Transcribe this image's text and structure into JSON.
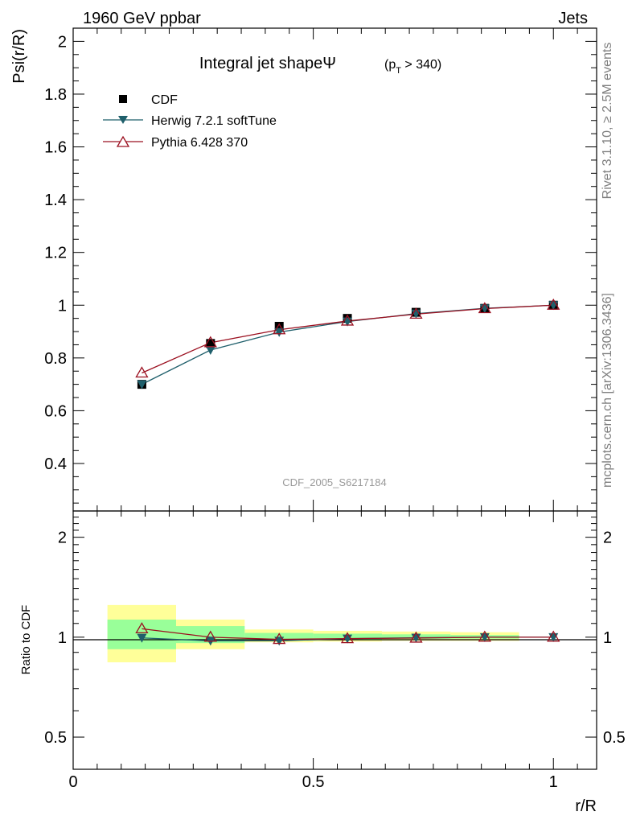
{
  "header": {
    "left": "1960 GeV ppbar",
    "right": "Jets"
  },
  "side_labels": {
    "rivet": "Rivet 3.1.10, ≥ 2.5M events",
    "mcplots": "mcplots.cern.ch [arXiv:1306.3436]"
  },
  "watermark": "CDF_2005_S6217184",
  "colors": {
    "cdf": "#000000",
    "herwig": "#1f5f6b",
    "pythia": "#9b1020",
    "band_inner": "#99ff99",
    "band_outer": "#ffff99"
  },
  "chart_data": [
    {
      "type": "line",
      "title": "Integral jet shapeΨ",
      "title_sub": {
        "open": "(p",
        "sub": "T",
        "close": " > 340)"
      },
      "ylabel": "Psi(r/R)",
      "xlim": [
        0,
        1.09
      ],
      "ylim": [
        0.22,
        2.05
      ],
      "yticks": [
        0.4,
        0.6,
        0.8,
        1,
        1.2,
        1.4,
        1.6,
        1.8,
        2
      ],
      "ytick_labels": [
        "0.4",
        "0.6",
        "0.8",
        "1",
        "1.2",
        "1.4",
        "1.6",
        "1.8",
        "2"
      ],
      "x": [
        0.143,
        0.286,
        0.429,
        0.571,
        0.714,
        0.857,
        1.0
      ],
      "series": [
        {
          "name": "CDF",
          "marker": "square",
          "values": [
            0.7,
            0.855,
            0.92,
            0.95,
            0.973,
            0.988,
            1.0
          ]
        },
        {
          "name": "Herwig 7.2.1 softTune",
          "marker": "triangle-down",
          "values": [
            0.7,
            0.83,
            0.898,
            0.938,
            0.968,
            0.988,
            1.0
          ]
        },
        {
          "name": "Pythia 6.428 370",
          "marker": "triangle-up-open",
          "values": [
            0.743,
            0.858,
            0.907,
            0.94,
            0.966,
            0.987,
            1.0
          ]
        }
      ]
    },
    {
      "type": "line",
      "ylabel": "Ratio to CDF",
      "xlabel": "r/R",
      "xlim": [
        0,
        1.09
      ],
      "ylim": [
        0.4,
        2.4
      ],
      "yscale": "log",
      "yticks": [
        0.5,
        1,
        2
      ],
      "ytick_labels": [
        "0.5",
        "1",
        "2"
      ],
      "xticks": [
        0,
        0.5,
        1
      ],
      "xtick_labels": [
        "0",
        "0.5",
        "1"
      ],
      "x": [
        0.143,
        0.286,
        0.429,
        0.571,
        0.714,
        0.857,
        1.0
      ],
      "bands": [
        {
          "x0": 0.0714,
          "x1": 0.2143,
          "outer": [
            0.84,
            1.25
          ],
          "inner": [
            0.92,
            1.13
          ]
        },
        {
          "x0": 0.2143,
          "x1": 0.3571,
          "outer": [
            0.92,
            1.13
          ],
          "inner": [
            0.96,
            1.08
          ]
        },
        {
          "x0": 0.3571,
          "x1": 0.5,
          "outer": [
            0.965,
            1.055
          ],
          "inner": [
            0.98,
            1.03
          ]
        },
        {
          "x0": 0.5,
          "x1": 0.6429,
          "outer": [
            0.97,
            1.045
          ],
          "inner": [
            0.985,
            1.025
          ]
        },
        {
          "x0": 0.6429,
          "x1": 0.7857,
          "outer": [
            0.975,
            1.04
          ],
          "inner": [
            0.988,
            1.02
          ]
        },
        {
          "x0": 0.7857,
          "x1": 0.9286,
          "outer": [
            0.975,
            1.035
          ],
          "inner": [
            0.99,
            1.015
          ]
        }
      ],
      "series": [
        {
          "name": "Herwig 7.2.1 softTune",
          "marker": "triangle-down",
          "values": [
            0.995,
            0.975,
            0.975,
            0.99,
            0.996,
            1.0,
            1.0
          ]
        },
        {
          "name": "Pythia 6.428 370",
          "marker": "triangle-up-open",
          "values": [
            1.06,
            1.0,
            0.985,
            0.99,
            0.994,
            1.0,
            1.0
          ]
        }
      ]
    }
  ]
}
